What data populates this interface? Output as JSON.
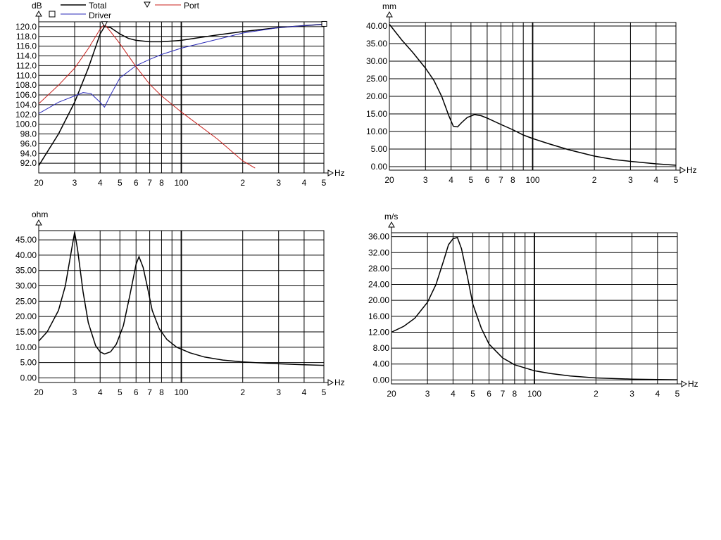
{
  "chart_data": [
    {
      "type": "line",
      "id": "spl",
      "ylabel": "dB",
      "xunit": "Hz",
      "xlim": [
        20,
        500
      ],
      "ylim": [
        90,
        121
      ],
      "x_ticks": [
        20,
        30,
        40,
        50,
        60,
        70,
        80,
        100,
        200,
        300,
        400,
        500
      ],
      "x_tick_labels": [
        "20",
        "3",
        "4",
        "5",
        "6",
        "7",
        "8",
        "100",
        "2",
        "3",
        "4",
        "5"
      ],
      "y_ticks": [
        92,
        94,
        96,
        98,
        100,
        102,
        104,
        106,
        108,
        110,
        112,
        114,
        116,
        118,
        120
      ],
      "y_tick_labels": [
        "92.0",
        "94.0",
        "96.0",
        "98.0",
        "100.0",
        "102.0",
        "104.0",
        "106.0",
        "108.0",
        "110.0",
        "112.0",
        "114.0",
        "116.0",
        "118.0",
        "120.0"
      ],
      "legend_position": "top-left",
      "series": [
        {
          "name": "Total",
          "color": "#000000",
          "marker": "",
          "x": [
            20,
            25,
            30,
            35,
            40,
            42,
            45,
            50,
            55,
            60,
            70,
            80,
            100,
            120,
            150,
            200,
            300,
            400,
            500
          ],
          "y": [
            91.5,
            98,
            104.5,
            111.5,
            118.5,
            120,
            119.8,
            118.5,
            117.6,
            117.2,
            116.9,
            116.9,
            117.2,
            117.7,
            118.3,
            119.0,
            119.8,
            120.2,
            120.5
          ]
        },
        {
          "name": "Driver",
          "color": "#2a2ab8",
          "marker": "square",
          "x": [
            20,
            25,
            30,
            33,
            36,
            40,
            42,
            45,
            50,
            60,
            70,
            80,
            100,
            150,
            200,
            300,
            400,
            500
          ],
          "y": [
            102.2,
            104.5,
            105.8,
            106.5,
            106.3,
            104.5,
            103.5,
            106,
            109.5,
            112,
            113.3,
            114.3,
            115.6,
            117.4,
            118.7,
            119.8,
            120.2,
            120.5
          ]
        },
        {
          "name": "Port",
          "color": "#c8201c",
          "marker": "triangle-down",
          "x": [
            20,
            25,
            30,
            35,
            40,
            42,
            45,
            50,
            60,
            70,
            80,
            100,
            150,
            200,
            230
          ],
          "y": [
            104.2,
            108,
            111.5,
            115.5,
            119.5,
            120.5,
            119,
            116.5,
            111.8,
            108.2,
            105.8,
            102.5,
            97,
            92.5,
            91
          ]
        }
      ]
    },
    {
      "type": "line",
      "id": "excursion",
      "ylabel": "mm",
      "xunit": "Hz",
      "xlim": [
        20,
        500
      ],
      "ylim": [
        -1,
        41
      ],
      "x_ticks": [
        20,
        30,
        40,
        50,
        60,
        70,
        80,
        100,
        200,
        300,
        400,
        500
      ],
      "x_tick_labels": [
        "20",
        "3",
        "4",
        "5",
        "6",
        "7",
        "8",
        "100",
        "2",
        "3",
        "4",
        "5"
      ],
      "y_ticks": [
        0,
        5,
        10,
        15,
        20,
        25,
        30,
        35,
        40
      ],
      "y_tick_labels": [
        "0.00",
        "5.00",
        "10.00",
        "15.00",
        "20.00",
        "25.00",
        "30.00",
        "35.00",
        "40.00"
      ],
      "series": [
        {
          "color": "#000000",
          "x": [
            20,
            23,
            26,
            30,
            33,
            36,
            39,
            41,
            43,
            45,
            48,
            52,
            56,
            60,
            70,
            80,
            90,
            100,
            120,
            150,
            200,
            250,
            300,
            400,
            500
          ],
          "y": [
            40.5,
            36,
            32.5,
            28,
            24.5,
            20,
            14.5,
            11.5,
            11.3,
            12.5,
            14,
            14.8,
            14.5,
            13.8,
            12,
            10.5,
            9,
            8,
            6.5,
            4.8,
            3,
            2,
            1.5,
            0.8,
            0.4
          ]
        }
      ]
    },
    {
      "type": "line",
      "id": "impedance",
      "ylabel": "ohm",
      "xunit": "Hz",
      "xlim": [
        20,
        500
      ],
      "ylim": [
        -1.5,
        48
      ],
      "x_ticks": [
        20,
        30,
        40,
        50,
        60,
        70,
        80,
        100,
        200,
        300,
        400,
        500
      ],
      "x_tick_labels": [
        "20",
        "3",
        "4",
        "5",
        "6",
        "7",
        "8",
        "100",
        "2",
        "3",
        "4",
        "5"
      ],
      "y_ticks": [
        0,
        5,
        10,
        15,
        20,
        25,
        30,
        35,
        40,
        45
      ],
      "y_tick_labels": [
        "0.00",
        "5.00",
        "10.00",
        "15.00",
        "20.00",
        "25.00",
        "30.00",
        "35.00",
        "40.00",
        "45.00"
      ],
      "series": [
        {
          "color": "#000000",
          "x": [
            20,
            22,
            25,
            27,
            29,
            30,
            31,
            33,
            35,
            38,
            40,
            42,
            45,
            48,
            52,
            56,
            60,
            62,
            65,
            68,
            72,
            78,
            85,
            95,
            110,
            130,
            160,
            200,
            300,
            400,
            500
          ],
          "y": [
            12,
            15,
            22,
            30,
            42,
            47.5,
            42,
            28,
            18,
            10.5,
            8.5,
            7.8,
            8.5,
            11,
            17,
            27,
            37,
            39.5,
            36,
            30,
            22,
            16,
            12.5,
            10,
            8.2,
            6.8,
            5.8,
            5.2,
            4.6,
            4.3,
            4.1
          ]
        }
      ]
    },
    {
      "type": "line",
      "id": "port-velocity",
      "ylabel": "m/s",
      "xunit": "Hz",
      "xlim": [
        20,
        500
      ],
      "ylim": [
        -1,
        37
      ],
      "x_ticks": [
        20,
        30,
        40,
        50,
        60,
        70,
        80,
        100,
        200,
        300,
        400,
        500
      ],
      "x_tick_labels": [
        "20",
        "3",
        "4",
        "5",
        "6",
        "7",
        "8",
        "100",
        "2",
        "3",
        "4",
        "5"
      ],
      "y_ticks": [
        0,
        4,
        8,
        12,
        16,
        20,
        24,
        28,
        32,
        36
      ],
      "y_tick_labels": [
        "0.00",
        "4.00",
        "8.00",
        "12.00",
        "16.00",
        "20.00",
        "24.00",
        "28.00",
        "32.00",
        "36.00"
      ],
      "series": [
        {
          "color": "#000000",
          "x": [
            20,
            23,
            26,
            30,
            33,
            36,
            38,
            40,
            42,
            44,
            47,
            50,
            55,
            60,
            70,
            80,
            100,
            120,
            150,
            200,
            300,
            400,
            500
          ],
          "y": [
            12,
            13.5,
            15.5,
            19.5,
            24,
            30,
            34,
            35.5,
            35.8,
            33,
            26,
            19,
            13,
            9,
            5.5,
            3.8,
            2.3,
            1.6,
            1,
            0.5,
            0.2,
            0.1,
            0.05
          ]
        }
      ]
    }
  ]
}
